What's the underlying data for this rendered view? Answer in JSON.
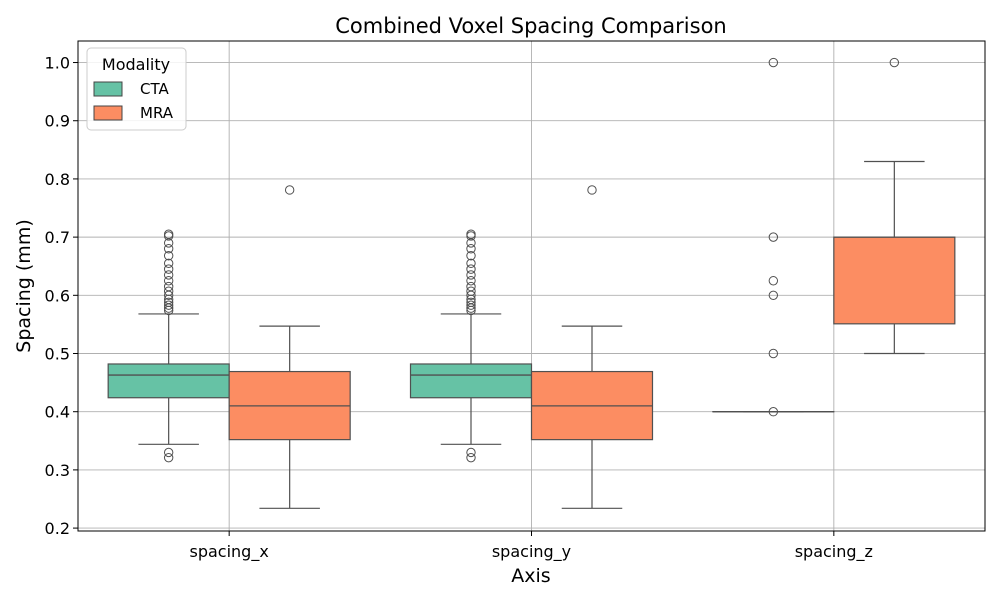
{
  "chart_data": {
    "type": "box",
    "title": "Combined Voxel Spacing Comparison",
    "xlabel": "Axis",
    "ylabel": "Spacing (mm)",
    "categories": [
      "spacing_x",
      "spacing_y",
      "spacing_z"
    ],
    "ylim": [
      0.195,
      1.037
    ],
    "yticks": [
      "0.2",
      "0.3",
      "0.4",
      "0.5",
      "0.6",
      "0.7",
      "0.8",
      "0.9",
      "1.0"
    ],
    "grid": true,
    "legend": {
      "title": "Modality",
      "position": "top-left"
    },
    "series": [
      {
        "name": "CTA",
        "color": "#66c2a5",
        "boxes": [
          {
            "whisker_low": 0.344,
            "q1": 0.424,
            "median": 0.463,
            "q3": 0.482,
            "whisker_high": 0.568,
            "outliers": [
              0.321,
              0.33,
              0.574,
              0.578,
              0.583,
              0.588,
              0.593,
              0.6,
              0.607,
              0.615,
              0.625,
              0.635,
              0.645,
              0.655,
              0.668,
              0.68,
              0.69,
              0.702,
              0.705
            ]
          },
          {
            "whisker_low": 0.344,
            "q1": 0.424,
            "median": 0.463,
            "q3": 0.482,
            "whisker_high": 0.568,
            "outliers": [
              0.321,
              0.33,
              0.574,
              0.578,
              0.583,
              0.588,
              0.593,
              0.6,
              0.607,
              0.615,
              0.625,
              0.635,
              0.645,
              0.655,
              0.668,
              0.68,
              0.69,
              0.702,
              0.705
            ]
          },
          {
            "whisker_low": 0.4,
            "q1": 0.4,
            "median": 0.4,
            "q3": 0.4,
            "whisker_high": 0.4,
            "outliers": [
              0.4,
              0.5,
              0.6,
              0.625,
              0.7,
              1.0
            ]
          }
        ]
      },
      {
        "name": "MRA",
        "color": "#fc8d62",
        "boxes": [
          {
            "whisker_low": 0.234,
            "q1": 0.352,
            "median": 0.41,
            "q3": 0.469,
            "whisker_high": 0.547,
            "outliers": [
              0.781
            ]
          },
          {
            "whisker_low": 0.234,
            "q1": 0.352,
            "median": 0.41,
            "q3": 0.469,
            "whisker_high": 0.547,
            "outliers": [
              0.781
            ]
          },
          {
            "whisker_low": 0.5,
            "q1": 0.551,
            "median": 0.7,
            "q3": 0.7,
            "whisker_high": 0.83,
            "outliers": [
              1.0
            ]
          }
        ]
      }
    ]
  }
}
